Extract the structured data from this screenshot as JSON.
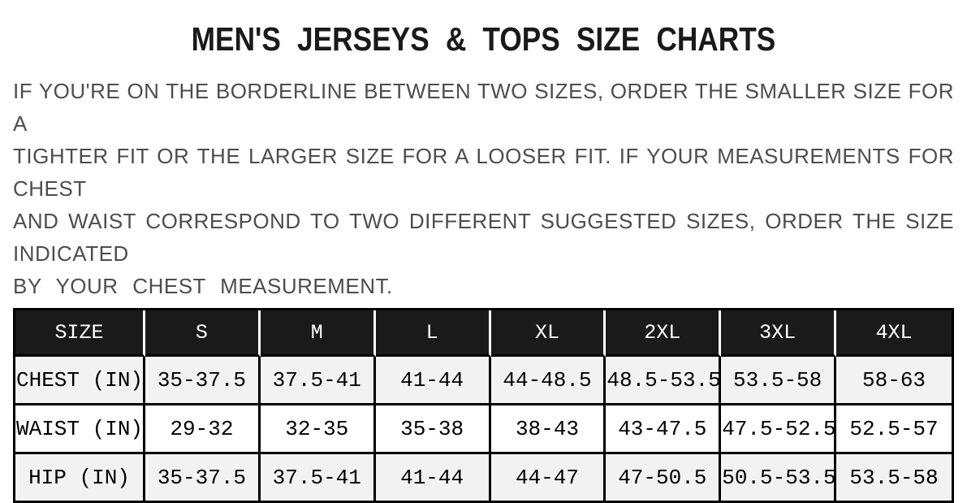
{
  "title": "MEN'S JERSEYS & TOPS SIZE CHARTS",
  "intro": {
    "lines": [
      "IF YOU'RE ON THE BORDERLINE BETWEEN TWO SIZES, ORDER THE SMALLER SIZE FOR A",
      "TIGHTER FIT OR THE LARGER SIZE FOR A LOOSER FIT. IF YOUR MEASUREMENTS FOR CHEST",
      "AND WAIST CORRESPOND TO TWO DIFFERENT SUGGESTED SIZES, ORDER THE SIZE INDICATED",
      "BY YOUR CHEST MEASUREMENT."
    ]
  },
  "size_table": {
    "columns": [
      "SIZE",
      "S",
      "M",
      "L",
      "XL",
      "2XL",
      "3XL",
      "4XL"
    ],
    "rows": [
      {
        "label": "CHEST (IN)",
        "values": [
          "35-37.5",
          "37.5-41",
          "41-44",
          "44-48.5",
          "48.5-53.5",
          "53.5-58",
          "58-63"
        ]
      },
      {
        "label": "WAIST (IN)",
        "values": [
          "29-32",
          "32-35",
          "35-38",
          "38-43",
          "43-47.5",
          "47.5-52.5",
          "52.5-57"
        ]
      },
      {
        "label": "HIP (IN)",
        "values": [
          "35-37.5",
          "37.5-41",
          "41-44",
          "44-47",
          "47-50.5",
          "50.5-53.5",
          "53.5-58"
        ]
      }
    ]
  },
  "colors": {
    "title_text": "#1a1a1a",
    "intro_text": "#4d4d4d",
    "header_bg": "#1a1a1a",
    "header_text": "#ffffff",
    "grid_border": "#000000",
    "header_separator": "#ffffff",
    "stripe_row_bg": "#f2f2f3",
    "plain_row_bg": "#ffffff"
  }
}
